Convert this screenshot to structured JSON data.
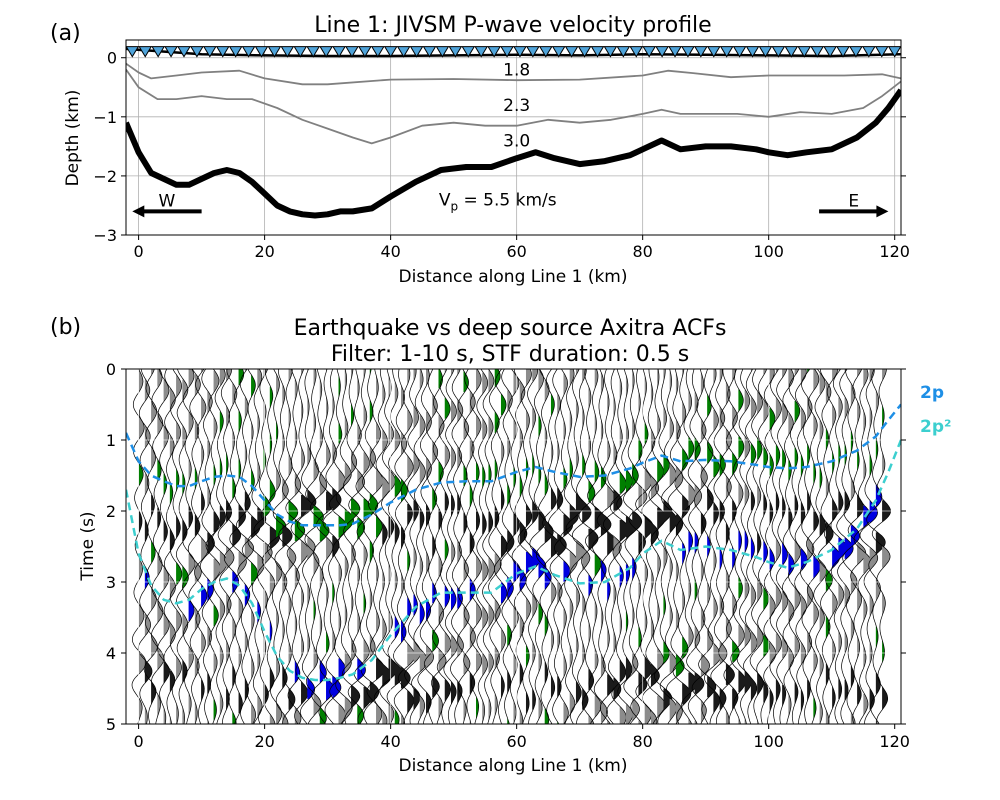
{
  "chart_data": [
    {
      "panel_label": "(a)",
      "type": "line",
      "title": "Line 1: JIVSM P-wave velocity profile",
      "xlabel": "Distance along Line 1 (km)",
      "ylabel": "Depth (km)",
      "xlim": [
        -2,
        121
      ],
      "ylim": [
        -3,
        0.3
      ],
      "xticks": [
        0,
        20,
        40,
        60,
        80,
        100,
        120
      ],
      "yticks": [
        -3,
        -2,
        -1,
        0
      ],
      "grid": true,
      "stations": {
        "marker": "triangle",
        "fill": "#4fa3d9",
        "x_start": -1,
        "x_end": 120,
        "count": 60,
        "depth": 0.12
      },
      "layers": [
        {
          "name": "surface",
          "color": "#000000",
          "x": [
            -2,
            10,
            20,
            30,
            40,
            50,
            60,
            70,
            80,
            90,
            100,
            110,
            121
          ],
          "y": [
            0.15,
            0.06,
            0.04,
            0.03,
            0.03,
            0.04,
            0.05,
            0.04,
            0.06,
            0.05,
            0.04,
            0.03,
            0.06
          ]
        },
        {
          "name": "interface-1.8",
          "color": "#808080",
          "x": [
            -2,
            0,
            2,
            6,
            10,
            16,
            20,
            26,
            30,
            40,
            50,
            60,
            70,
            80,
            84,
            88,
            94,
            100,
            106,
            112,
            118,
            121
          ],
          "y": [
            -0.1,
            -0.25,
            -0.35,
            -0.3,
            -0.25,
            -0.22,
            -0.35,
            -0.45,
            -0.45,
            -0.37,
            -0.36,
            -0.38,
            -0.37,
            -0.3,
            -0.22,
            -0.26,
            -0.33,
            -0.3,
            -0.3,
            -0.3,
            -0.28,
            -0.35
          ]
        },
        {
          "name": "interface-2.3",
          "color": "#808080",
          "x": [
            -2,
            0,
            3,
            6,
            10,
            14,
            18,
            22,
            26,
            30,
            34,
            37,
            40,
            45,
            50,
            55,
            60,
            65,
            70,
            75,
            80,
            83,
            86,
            90,
            95,
            100,
            105,
            110,
            115,
            118,
            121
          ],
          "y": [
            -0.2,
            -0.5,
            -0.7,
            -0.7,
            -0.65,
            -0.7,
            -0.7,
            -0.85,
            -1.05,
            -1.2,
            -1.35,
            -1.45,
            -1.35,
            -1.15,
            -1.1,
            -1.15,
            -1.15,
            -1.05,
            -1.1,
            -1.05,
            -0.95,
            -0.88,
            -0.95,
            -0.95,
            -0.95,
            -1.0,
            -0.92,
            -0.95,
            -0.85,
            -0.65,
            -0.4
          ]
        },
        {
          "name": "basement-5.5",
          "color": "#000000",
          "x": [
            -2,
            0,
            2,
            4,
            6,
            8,
            10,
            12,
            14,
            16,
            18,
            20,
            22,
            24,
            26,
            28,
            30,
            32,
            34,
            37,
            40,
            44,
            48,
            52,
            56,
            60,
            63,
            66,
            70,
            74,
            78,
            80,
            83,
            86,
            90,
            94,
            98,
            100,
            103,
            106,
            110,
            114,
            117,
            119,
            121
          ],
          "y": [
            -1.1,
            -1.6,
            -1.95,
            -2.05,
            -2.15,
            -2.15,
            -2.05,
            -1.95,
            -1.9,
            -1.95,
            -2.1,
            -2.3,
            -2.5,
            -2.6,
            -2.65,
            -2.67,
            -2.65,
            -2.6,
            -2.6,
            -2.55,
            -2.35,
            -2.1,
            -1.9,
            -1.85,
            -1.85,
            -1.7,
            -1.6,
            -1.7,
            -1.8,
            -1.75,
            -1.65,
            -1.55,
            -1.4,
            -1.55,
            -1.5,
            -1.5,
            -1.55,
            -1.6,
            -1.65,
            -1.6,
            -1.55,
            -1.35,
            -1.1,
            -0.85,
            -0.55
          ]
        }
      ],
      "annotations": [
        {
          "text": "1.8",
          "x": 60,
          "y": -0.2
        },
        {
          "text": "2.3",
          "x": 60,
          "y": -0.8
        },
        {
          "text": "3.0",
          "x": 60,
          "y": -1.4
        }
      ],
      "vp_label": {
        "prefix": "V",
        "sub": "p",
        "suffix": " = 5.5 km/s",
        "x": 57,
        "y": -2.4
      },
      "direction_arrows": [
        {
          "text": "W",
          "x_from": 10,
          "x_to": -1,
          "y": -2.6
        },
        {
          "text": "E",
          "x_from": 108,
          "x_to": 119,
          "y": -2.6
        }
      ]
    },
    {
      "panel_label": "(b)",
      "type": "seismic-wiggle",
      "title": [
        "Earthquake vs deep source Axitra ACFs",
        "Filter: 1-10 s, STF duration: 0.5 s"
      ],
      "xlabel": "Distance along Line 1 (km)",
      "ylabel": "Time (s)",
      "xlim": [
        -2,
        121
      ],
      "ylim": [
        5,
        0
      ],
      "xticks": [
        0,
        20,
        40,
        60,
        80,
        100,
        120
      ],
      "yticks": [
        0,
        1,
        2,
        3,
        4,
        5
      ],
      "grid": true,
      "wiggle_colors": {
        "gray": "#8c8c8c",
        "dark": "#1a1a1a",
        "green": "#007f00",
        "blue": "#0000e0"
      },
      "traces": {
        "x_start": 0,
        "x_end": 118,
        "count": 120
      },
      "series": [
        {
          "name": "2p",
          "color": "#1e8fe6",
          "dash": true,
          "x": [
            -2,
            0,
            2,
            4,
            6,
            8,
            10,
            12,
            14,
            16,
            18,
            20,
            22,
            24,
            26,
            28,
            30,
            32,
            34,
            37,
            40,
            44,
            48,
            52,
            56,
            60,
            63,
            66,
            70,
            74,
            78,
            80,
            83,
            86,
            90,
            94,
            98,
            100,
            103,
            106,
            110,
            114,
            117,
            119,
            121
          ],
          "y": [
            0.9,
            1.3,
            1.5,
            1.58,
            1.65,
            1.65,
            1.58,
            1.52,
            1.5,
            1.52,
            1.65,
            1.85,
            2.05,
            2.15,
            2.2,
            2.2,
            2.2,
            2.2,
            2.18,
            2.05,
            1.88,
            1.7,
            1.6,
            1.58,
            1.58,
            1.45,
            1.38,
            1.45,
            1.52,
            1.5,
            1.4,
            1.32,
            1.22,
            1.3,
            1.28,
            1.3,
            1.35,
            1.38,
            1.4,
            1.38,
            1.3,
            1.15,
            0.95,
            0.72,
            0.5
          ]
        },
        {
          "name": "2p²",
          "color": "#3ccfcf",
          "dash": true,
          "x": [
            -2,
            0,
            2,
            4,
            6,
            8,
            10,
            12,
            14,
            16,
            18,
            20,
            22,
            24,
            26,
            28,
            30,
            32,
            34,
            37,
            40,
            44,
            48,
            52,
            56,
            60,
            63,
            66,
            70,
            74,
            78,
            80,
            83,
            86,
            90,
            94,
            98,
            100,
            103,
            106,
            110,
            114,
            117,
            119,
            121
          ],
          "y": [
            1.7,
            2.6,
            3.05,
            3.25,
            3.3,
            3.25,
            3.1,
            3.0,
            2.95,
            3.05,
            3.3,
            3.7,
            4.05,
            4.25,
            4.35,
            4.38,
            4.38,
            4.35,
            4.3,
            4.1,
            3.75,
            3.35,
            3.15,
            3.15,
            3.15,
            2.88,
            2.78,
            2.9,
            3.02,
            3.0,
            2.8,
            2.6,
            2.42,
            2.55,
            2.5,
            2.55,
            2.65,
            2.72,
            2.8,
            2.72,
            2.55,
            2.25,
            1.85,
            1.45,
            1.0
          ]
        }
      ],
      "legend": {
        "placement": "right-outside",
        "entries": [
          "2p",
          "2p²"
        ]
      }
    }
  ]
}
